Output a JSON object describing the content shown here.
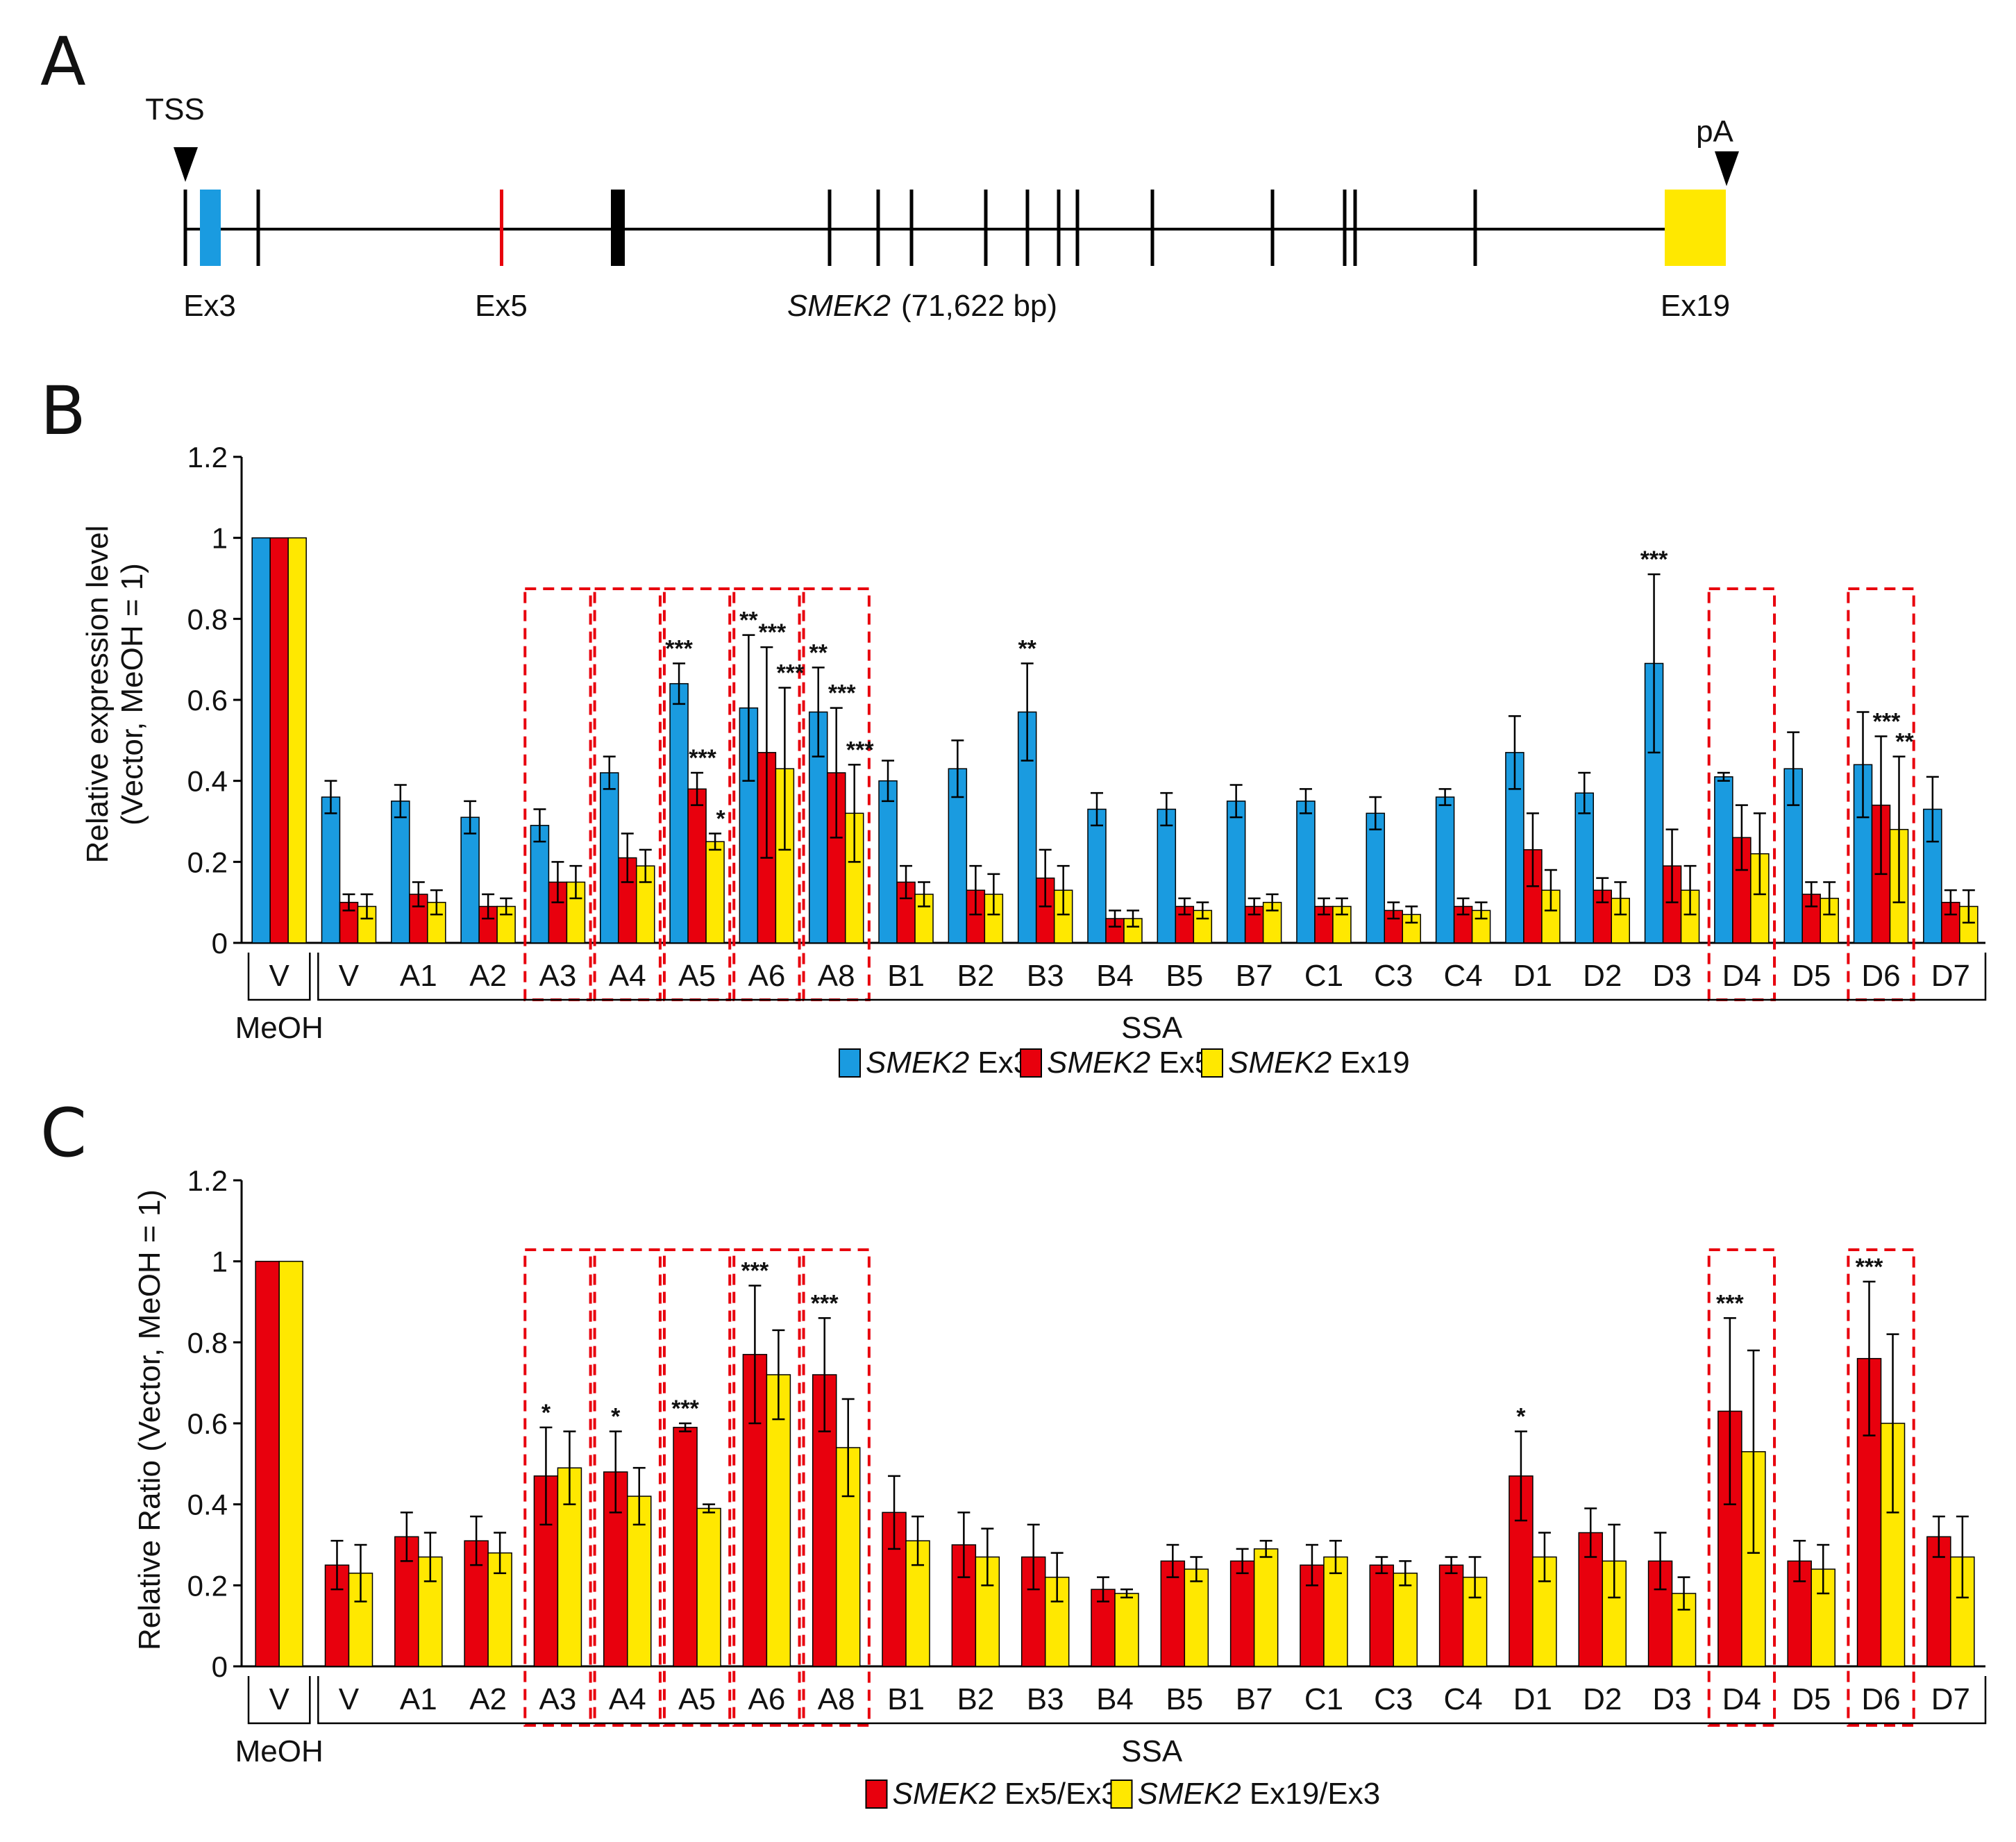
{
  "panel_labels": [
    "A",
    "B",
    "C"
  ],
  "gene_map": {
    "tss_label": "TSS",
    "pa_label": "pA",
    "ex3_label": "Ex3",
    "ex5_label": "Ex5",
    "ex19_label": "Ex19",
    "gene_name": "SMEK2",
    "gene_length": "(71,622 bp)",
    "colors": {
      "ex3": "#1a9be0",
      "ex5": "#e8000d",
      "ex19": "#ffe800",
      "intron": "#000000"
    }
  },
  "chart_data": [
    {
      "type": "bar",
      "panel": "B",
      "ylabel_line1": "Relative expression level",
      "ylabel_line2": "(Vector, MeOH = 1)",
      "ylim": [
        0,
        1.2
      ],
      "yticks": [
        "0",
        "0.2",
        "0.4",
        "0.6",
        "0.8",
        "1",
        "1.2"
      ],
      "categories": [
        "V",
        "V",
        "A1",
        "A2",
        "A3",
        "A4",
        "A5",
        "A6",
        "A8",
        "B1",
        "B2",
        "B3",
        "B4",
        "B5",
        "B7",
        "C1",
        "C3",
        "C4",
        "D1",
        "D2",
        "D3",
        "D4",
        "D5",
        "D6",
        "D7"
      ],
      "group_labels": {
        "meoh": "MeOH",
        "ssa": "SSA"
      },
      "boxed_indices": [
        4,
        5,
        6,
        7,
        8,
        21,
        23
      ],
      "series": [
        {
          "name": "SMEK2 Ex3",
          "italic": "SMEK2",
          "suffix": " Ex3",
          "color": "#1a9be0",
          "values": [
            1.0,
            0.36,
            0.35,
            0.31,
            0.29,
            0.42,
            0.64,
            0.58,
            0.57,
            0.4,
            0.43,
            0.57,
            0.33,
            0.33,
            0.35,
            0.35,
            0.32,
            0.36,
            0.47,
            0.37,
            0.69,
            0.41,
            0.43,
            0.44,
            0.33
          ],
          "errors": [
            0,
            0.04,
            0.04,
            0.04,
            0.04,
            0.04,
            0.05,
            0.18,
            0.11,
            0.05,
            0.07,
            0.12,
            0.04,
            0.04,
            0.04,
            0.03,
            0.04,
            0.02,
            0.09,
            0.05,
            0.22,
            0.01,
            0.09,
            0.13,
            0.08
          ],
          "sig": [
            "",
            "",
            "",
            "",
            "",
            "",
            "***",
            "**",
            "**",
            "",
            "",
            "**",
            "",
            "",
            "",
            "",
            "",
            "",
            "",
            "",
            "***",
            "",
            "",
            "",
            ""
          ]
        },
        {
          "name": "SMEK2 Ex5",
          "italic": "SMEK2",
          "suffix": " Ex5",
          "color": "#e8000d",
          "values": [
            1.0,
            0.1,
            0.12,
            0.09,
            0.15,
            0.21,
            0.38,
            0.47,
            0.42,
            0.15,
            0.13,
            0.16,
            0.06,
            0.09,
            0.09,
            0.09,
            0.08,
            0.09,
            0.23,
            0.13,
            0.19,
            0.26,
            0.12,
            0.34,
            0.1
          ],
          "errors": [
            0,
            0.02,
            0.03,
            0.03,
            0.05,
            0.06,
            0.04,
            0.26,
            0.16,
            0.04,
            0.06,
            0.07,
            0.02,
            0.02,
            0.02,
            0.02,
            0.02,
            0.02,
            0.09,
            0.03,
            0.09,
            0.08,
            0.03,
            0.17,
            0.03
          ],
          "sig": [
            "",
            "",
            "",
            "",
            "",
            "",
            "***",
            "***",
            "***",
            "",
            "",
            "",
            "",
            "",
            "",
            "",
            "",
            "",
            "",
            "",
            "",
            "",
            "",
            "***",
            ""
          ]
        },
        {
          "name": "SMEK2 Ex19",
          "italic": "SMEK2",
          "suffix": " Ex19",
          "color": "#ffe800",
          "values": [
            1.0,
            0.09,
            0.1,
            0.09,
            0.15,
            0.19,
            0.25,
            0.43,
            0.32,
            0.12,
            0.12,
            0.13,
            0.06,
            0.08,
            0.1,
            0.09,
            0.07,
            0.08,
            0.13,
            0.11,
            0.13,
            0.22,
            0.11,
            0.28,
            0.09
          ],
          "errors": [
            0,
            0.03,
            0.03,
            0.02,
            0.04,
            0.04,
            0.02,
            0.2,
            0.12,
            0.03,
            0.05,
            0.06,
            0.02,
            0.02,
            0.02,
            0.02,
            0.02,
            0.02,
            0.05,
            0.04,
            0.06,
            0.1,
            0.04,
            0.18,
            0.04
          ],
          "sig": [
            "",
            "",
            "",
            "",
            "",
            "",
            "*",
            "***",
            "***",
            "",
            "",
            "",
            "",
            "",
            "",
            "",
            "",
            "",
            "",
            "",
            "",
            "",
            "",
            "**",
            ""
          ]
        }
      ]
    },
    {
      "type": "bar",
      "panel": "C",
      "ylabel": "Relative Ratio (Vector, MeOH = 1)",
      "ylim": [
        0,
        1.2
      ],
      "yticks": [
        "0",
        "0.2",
        "0.4",
        "0.6",
        "0.8",
        "1",
        "1.2"
      ],
      "categories": [
        "V",
        "V",
        "A1",
        "A2",
        "A3",
        "A4",
        "A5",
        "A6",
        "A8",
        "B1",
        "B2",
        "B3",
        "B4",
        "B5",
        "B7",
        "C1",
        "C3",
        "C4",
        "D1",
        "D2",
        "D3",
        "D4",
        "D5",
        "D6",
        "D7"
      ],
      "group_labels": {
        "meoh": "MeOH",
        "ssa": "SSA"
      },
      "boxed_indices": [
        4,
        5,
        6,
        7,
        8,
        21,
        23
      ],
      "series": [
        {
          "name": "SMEK2 Ex5/Ex3",
          "italic": "SMEK2",
          "suffix": " Ex5/Ex3",
          "color": "#e8000d",
          "values": [
            1.0,
            0.25,
            0.32,
            0.31,
            0.47,
            0.48,
            0.59,
            0.77,
            0.72,
            0.38,
            0.3,
            0.27,
            0.19,
            0.26,
            0.26,
            0.25,
            0.25,
            0.25,
            0.47,
            0.33,
            0.26,
            0.63,
            0.26,
            0.76,
            0.32
          ],
          "errors": [
            0,
            0.06,
            0.06,
            0.06,
            0.12,
            0.1,
            0.01,
            0.17,
            0.14,
            0.09,
            0.08,
            0.08,
            0.03,
            0.04,
            0.03,
            0.05,
            0.02,
            0.02,
            0.11,
            0.06,
            0.07,
            0.23,
            0.05,
            0.19,
            0.05
          ],
          "sig": [
            "",
            "",
            "",
            "",
            "*",
            "*",
            "***",
            "***",
            "***",
            "",
            "",
            "",
            "",
            "",
            "",
            "",
            "",
            "",
            "*",
            "",
            "",
            "***",
            "",
            "***",
            ""
          ]
        },
        {
          "name": "SMEK2 Ex19/Ex3",
          "italic": "SMEK2",
          "suffix": " Ex19/Ex3",
          "color": "#ffe800",
          "values": [
            1.0,
            0.23,
            0.27,
            0.28,
            0.49,
            0.42,
            0.39,
            0.72,
            0.54,
            0.31,
            0.27,
            0.22,
            0.18,
            0.24,
            0.29,
            0.27,
            0.23,
            0.22,
            0.27,
            0.26,
            0.18,
            0.53,
            0.24,
            0.6,
            0.27
          ],
          "errors": [
            0,
            0.07,
            0.06,
            0.05,
            0.09,
            0.07,
            0.01,
            0.11,
            0.12,
            0.06,
            0.07,
            0.06,
            0.01,
            0.03,
            0.02,
            0.04,
            0.03,
            0.05,
            0.06,
            0.09,
            0.04,
            0.25,
            0.06,
            0.22,
            0.1
          ],
          "sig": [
            "",
            "",
            "",
            "",
            "",
            "",
            "",
            "",
            "",
            "",
            "",
            "",
            "",
            "",
            "",
            "",
            "",
            "",
            "",
            "",
            "",
            "",
            "",
            "",
            ""
          ]
        }
      ]
    }
  ]
}
